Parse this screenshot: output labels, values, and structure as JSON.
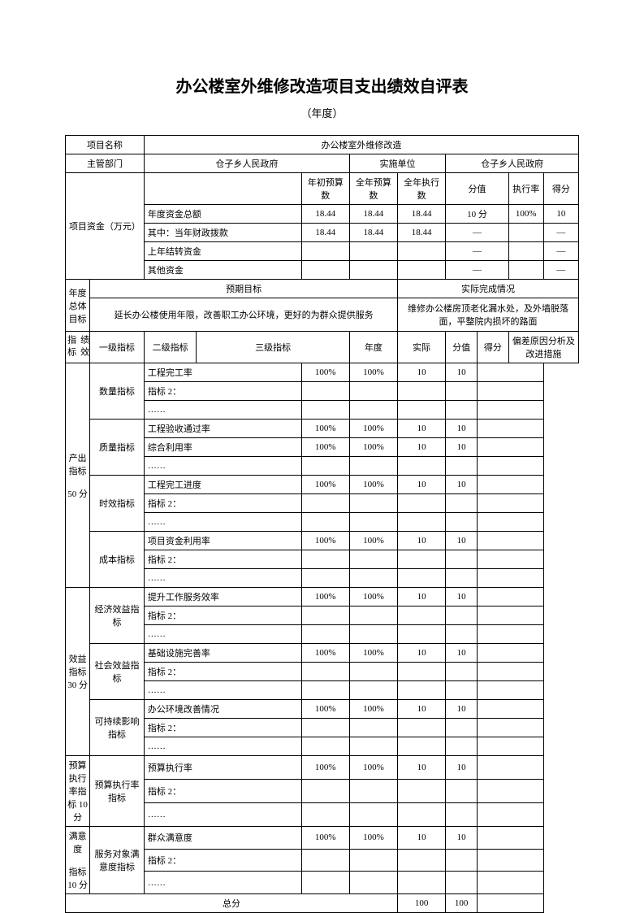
{
  "title": "办公楼室外维修改造项目支出绩效自评表",
  "subtitle": "（年度）",
  "labels": {
    "project_name": "项目名称",
    "supervisor": "主管部门",
    "impl_unit": "实施单位",
    "annual_overall": "年度总体目标",
    "expected_goal": "预期目标",
    "actual_completion": "实际完成情况",
    "perf_indicator": "绩效指标",
    "level1": "一级指标",
    "level2": "二级指标",
    "level3": "三级指标",
    "year_target": "年度",
    "actual": "实际",
    "fenzhi": "分值",
    "defen": "得分",
    "deviation": "偏差原因分析及改进措施",
    "total_score": "总分"
  },
  "header": {
    "project_name_val": "办公楼室外维修改造",
    "supervisor_val": "仓子乡人民政府",
    "impl_unit_val": "仓子乡人民政府"
  },
  "fund": {
    "label": "项目资金（万元）",
    "cols": [
      "",
      "年初预算数",
      "全年预算数",
      "全年执行数",
      "分值",
      "执行率",
      "得分"
    ],
    "rows": [
      {
        "label": "年度资金总额",
        "v": [
          "18.44",
          "18.44",
          "18.44",
          "10 分",
          "100%",
          "10"
        ]
      },
      {
        "label": "其中：当年财政拨款",
        "v": [
          "18.44",
          "18.44",
          "18.44",
          "—",
          "",
          "—"
        ]
      },
      {
        "label": "上年结转资金",
        "v": [
          "",
          "",
          "",
          "—",
          "",
          "—"
        ]
      },
      {
        "label": "其他资金",
        "v": [
          "",
          "",
          "",
          "—",
          "",
          "—"
        ]
      }
    ]
  },
  "goal": {
    "expected": "延长办公楼使用年限，改善职工办公环境，更好的为群众提供服务",
    "actual": "维修办公楼房顶老化漏水处，及外墙脱落面，平整院内损坏的路面"
  },
  "groups": [
    {
      "l1": "产出指标\n\n50 分",
      "subs": [
        {
          "l2": "数量指标",
          "rows": [
            {
              "l3": "工程完工率",
              "yt": "100%",
              "ac": "100%",
              "fz": "10",
              "df": "10"
            },
            {
              "l3": "指标 2："
            },
            {
              "l3": "……"
            }
          ]
        },
        {
          "l2": "质量指标",
          "rows": [
            {
              "l3": "工程验收通过率",
              "yt": "100%",
              "ac": "100%",
              "fz": "10",
              "df": "10"
            },
            {
              "l3": "综合利用率",
              "yt": "100%",
              "ac": "100%",
              "fz": "10",
              "df": "10"
            },
            {
              "l3": "……"
            }
          ]
        },
        {
          "l2": "时效指标",
          "rows": [
            {
              "l3": "工程完工进度",
              "yt": "100%",
              "ac": "100%",
              "fz": "10",
              "df": "10"
            },
            {
              "l3": "指标 2："
            },
            {
              "l3": "……"
            }
          ]
        },
        {
          "l2": "成本指标",
          "rows": [
            {
              "l3": "项目资金利用率",
              "yt": "100%",
              "ac": "100%",
              "fz": "10",
              "df": "10"
            },
            {
              "l3": "指标 2："
            },
            {
              "l3": "……"
            }
          ]
        }
      ]
    },
    {
      "l1": "效益指标\n30 分",
      "subs": [
        {
          "l2": "经济效益指标",
          "rows": [
            {
              "l3": "提升工作服务效率",
              "yt": "100%",
              "ac": "100%",
              "fz": "10",
              "df": "10"
            },
            {
              "l3": "指标 2："
            },
            {
              "l3": "……"
            }
          ]
        },
        {
          "l2": "社会效益指标",
          "rows": [
            {
              "l3": "基础设施完善率",
              "yt": "100%",
              "ac": "100%",
              "fz": "10",
              "df": "10"
            },
            {
              "l3": "指标 2："
            },
            {
              "l3": "……"
            }
          ]
        },
        {
          "l2": "可持续影响指标",
          "rows": [
            {
              "l3": "办公环境改善情况",
              "yt": "100%",
              "ac": "100%",
              "fz": "10",
              "df": "10"
            },
            {
              "l3": "指标 2："
            },
            {
              "l3": "……"
            }
          ]
        }
      ]
    },
    {
      "l1": "预算执行率指标 10 分",
      "subs": [
        {
          "l2": "预算执行率指标",
          "rows": [
            {
              "l3": "预算执行率",
              "yt": "100%",
              "ac": "100%",
              "fz": "10",
              "df": "10"
            },
            {
              "l3": "指标 2："
            },
            {
              "l3": "……"
            }
          ]
        }
      ]
    },
    {
      "l1": "满意度\n\n指标 10 分",
      "subs": [
        {
          "l2": "服务对象满意度指标",
          "rows": [
            {
              "l3": "群众满意度",
              "yt": "100%",
              "ac": "100%",
              "fz": "10",
              "df": "10"
            },
            {
              "l3": "指标 2："
            },
            {
              "l3": "……"
            }
          ]
        }
      ]
    }
  ],
  "totals": {
    "fz": "100",
    "df": "100"
  }
}
